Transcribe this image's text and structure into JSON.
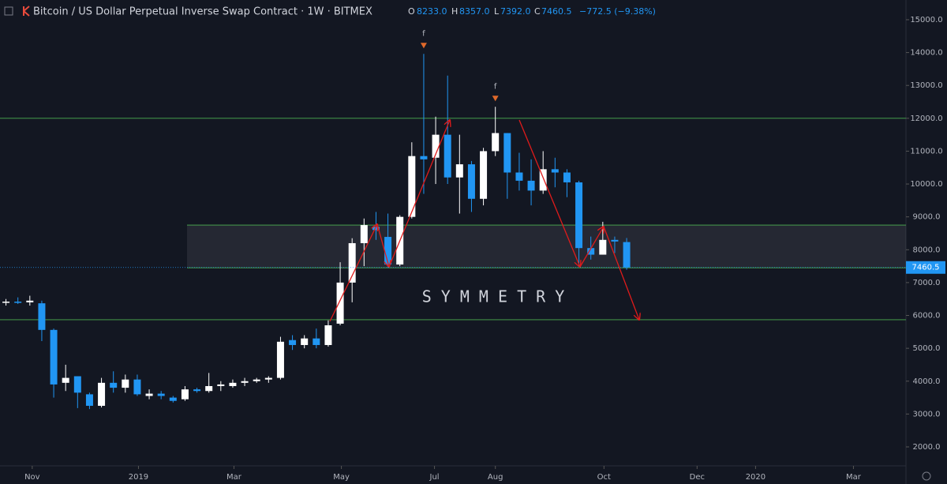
{
  "chart_data": {
    "type": "candlestick",
    "title": "Bitcoin / US Dollar Perpetual Inverse Swap Contract · 1W · BITMEX",
    "header": {
      "o_label": "O",
      "o": "8233.0",
      "h_label": "H",
      "h": "8357.0",
      "l_label": "L",
      "l": "7392.0",
      "c_label": "C",
      "c": "7460.5",
      "change": "−772.5 (−9.38%)"
    },
    "annotation": "S Y M M E T R Y",
    "markers": [
      {
        "x": 35,
        "label": "f"
      },
      {
        "x": 41,
        "label": "f"
      }
    ],
    "last_price": {
      "value": 7460.5,
      "label": "7460.5"
    },
    "up_color": "#ffffff",
    "down_color": "#2196f3",
    "levels": [
      12000,
      5870
    ],
    "zone": [
      7450,
      8750
    ],
    "series": [
      {
        "x": [
          0,
          1,
          2,
          3,
          4,
          5,
          6,
          7,
          8,
          9,
          10,
          11,
          12,
          13,
          14,
          15,
          16,
          17,
          18,
          19,
          20,
          21,
          22,
          23,
          24,
          25,
          26,
          27,
          28,
          29,
          30,
          31,
          32,
          33,
          34,
          35,
          36,
          37,
          38,
          39,
          40,
          41,
          42,
          43,
          44,
          45,
          46,
          47,
          48,
          49,
          50,
          51,
          52
        ],
        "open": [
          6400,
          6420,
          6400,
          6370,
          5560,
          3950,
          4150,
          3600,
          3250,
          3950,
          3800,
          4050,
          3550,
          3620,
          3500,
          3450,
          3750,
          3700,
          3850,
          3850,
          3950,
          4000,
          4050,
          4100,
          5250,
          5100,
          5300,
          5100,
          5750,
          7000,
          8200,
          8700,
          8390,
          7550,
          9000,
          10850,
          10800,
          11500,
          10200,
          10600,
          9550,
          11000,
          11550,
          10350,
          10100,
          9800,
          10450,
          10350,
          10050,
          8050,
          7850,
          8300,
          8233
        ],
        "high": [
          6500,
          6550,
          6600,
          6450,
          5600,
          4500,
          4150,
          3650,
          4100,
          4300,
          4200,
          4200,
          3750,
          3700,
          3550,
          3850,
          3800,
          4250,
          4000,
          4050,
          4100,
          4100,
          4150,
          5350,
          5400,
          5400,
          5600,
          5850,
          7620,
          8350,
          8950,
          9150,
          9100,
          9050,
          11270,
          13960,
          12050,
          13300,
          11500,
          10700,
          11100,
          12350,
          11550,
          10950,
          10750,
          11000,
          10800,
          10450,
          10100,
          8400,
          8850,
          8400,
          8357
        ],
        "low": [
          6300,
          6350,
          6300,
          5220,
          3500,
          3700,
          3180,
          3150,
          3200,
          3650,
          3650,
          3550,
          3450,
          3450,
          3350,
          3400,
          3650,
          3650,
          3700,
          3800,
          3850,
          3950,
          3950,
          4050,
          4950,
          5000,
          5000,
          5050,
          5700,
          6400,
          7500,
          8300,
          7450,
          7500,
          8950,
          9700,
          10000,
          10000,
          9100,
          9150,
          9350,
          10850,
          9550,
          9800,
          9350,
          9700,
          9900,
          9600,
          7480,
          7700,
          7850,
          7900,
          7392
        ],
        "close": [
          6420,
          6400,
          6450,
          5560,
          3900,
          4100,
          3650,
          3250,
          3950,
          3800,
          4050,
          3600,
          3620,
          3550,
          3400,
          3750,
          3700,
          3850,
          3900,
          3950,
          4000,
          4050,
          4100,
          5200,
          5100,
          5300,
          5100,
          5700,
          7000,
          8200,
          8750,
          8600,
          7550,
          9000,
          10850,
          10750,
          11500,
          10200,
          10600,
          9550,
          11000,
          11550,
          10350,
          10100,
          9800,
          10450,
          10350,
          10050,
          8050,
          7850,
          8300,
          8250,
          7460.5
        ]
      }
    ],
    "xlim": [
      -0.5,
      75.4
    ],
    "xticks": [
      {
        "value": 2.2,
        "label": "Nov"
      },
      {
        "value": 11.1,
        "label": "2019"
      },
      {
        "value": 19.1,
        "label": "Mar"
      },
      {
        "value": 28.1,
        "label": "May"
      },
      {
        "value": 35.9,
        "label": "Jul"
      },
      {
        "value": 41.0,
        "label": "Aug"
      },
      {
        "value": 50.1,
        "label": "Oct"
      },
      {
        "value": 57.9,
        "label": "Dec"
      },
      {
        "value": 62.8,
        "label": "2020"
      },
      {
        "value": 71.0,
        "label": "Mar"
      }
    ],
    "ylim": [
      1423,
      15600
    ],
    "yticks": [
      {
        "value": 2000,
        "label": "2000.0"
      },
      {
        "value": 3000,
        "label": "3000.0"
      },
      {
        "value": 4000,
        "label": "4000.0"
      },
      {
        "value": 5000,
        "label": "5000.0"
      },
      {
        "value": 6000,
        "label": "6000.0"
      },
      {
        "value": 7000,
        "label": "7000.0"
      },
      {
        "value": 8000,
        "label": "8000.0"
      },
      {
        "value": 9000,
        "label": "9000.0"
      },
      {
        "value": 10000,
        "label": "10000.0"
      },
      {
        "value": 11000,
        "label": "11000.0"
      },
      {
        "value": 12000,
        "label": "12000.0"
      },
      {
        "value": 13000,
        "label": "13000.0"
      },
      {
        "value": 14000,
        "label": "14000.0"
      },
      {
        "value": 15000,
        "label": "15000.0"
      }
    ]
  }
}
